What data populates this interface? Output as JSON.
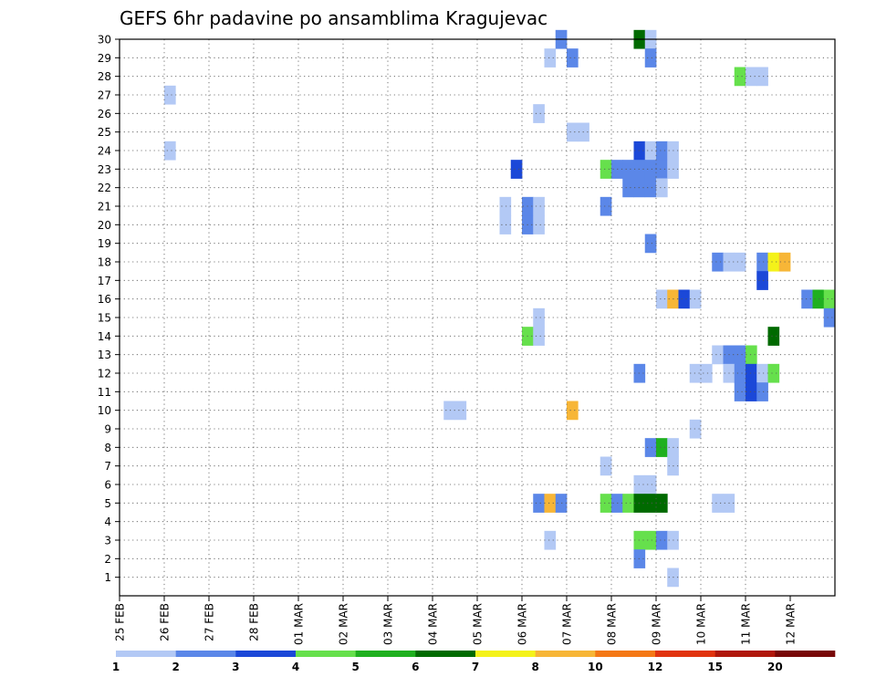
{
  "chart_data": {
    "type": "heatmap",
    "title": "GEFS 6hr padavine po ansamblima Kragujevac",
    "x_tick_labels": [
      "25 FEB",
      "26 FEB",
      "27 FEB",
      "28 FEB",
      "01 MAR",
      "02 MAR",
      "03 MAR",
      "04 MAR",
      "05 MAR",
      "06 MAR",
      "07 MAR",
      "08 MAR",
      "09 MAR",
      "10 MAR",
      "11 MAR",
      "12 MAR"
    ],
    "x_range_days": [
      0,
      16
    ],
    "x_step_days": 0.25,
    "y_tick_labels": [
      "1",
      "2",
      "3",
      "4",
      "5",
      "6",
      "7",
      "8",
      "9",
      "10",
      "11",
      "12",
      "13",
      "14",
      "15",
      "16",
      "17",
      "18",
      "19",
      "20",
      "21",
      "22",
      "23",
      "24",
      "25",
      "26",
      "27",
      "28",
      "29",
      "30"
    ],
    "y_range": [
      0,
      30
    ],
    "grid": true,
    "colorbar": {
      "colors": [
        "#b3c9f5",
        "#5b87e8",
        "#1b48d8",
        "#66e04c",
        "#1fb01f",
        "#006a00",
        "#f4f21a",
        "#f7b637",
        "#f47816",
        "#e1340f",
        "#b0180c",
        "#780808"
      ],
      "labels": [
        "1",
        "2",
        "3",
        "4",
        "5",
        "6",
        "7",
        "8",
        "10",
        "12",
        "15",
        "20"
      ]
    },
    "cells": [
      {
        "m": 30,
        "t": 9.75,
        "v": 2
      },
      {
        "m": 30,
        "t": 11.5,
        "v": 6
      },
      {
        "m": 30,
        "t": 11.75,
        "v": 1
      },
      {
        "m": 29,
        "t": 9.5,
        "v": 1
      },
      {
        "m": 29,
        "t": 10,
        "v": 2
      },
      {
        "m": 29,
        "t": 11.75,
        "v": 2
      },
      {
        "m": 28,
        "t": 13.75,
        "v": 4
      },
      {
        "m": 28,
        "t": 14,
        "v": 1
      },
      {
        "m": 28,
        "t": 14.25,
        "v": 1
      },
      {
        "m": 27,
        "t": 1,
        "v": 1
      },
      {
        "m": 26,
        "t": 9.25,
        "v": 1
      },
      {
        "m": 25,
        "t": 10,
        "v": 1
      },
      {
        "m": 25,
        "t": 10.25,
        "v": 1
      },
      {
        "m": 24,
        "t": 1,
        "v": 1
      },
      {
        "m": 24,
        "t": 11.5,
        "v": 3
      },
      {
        "m": 24,
        "t": 11.75,
        "v": 1
      },
      {
        "m": 24,
        "t": 12,
        "v": 2
      },
      {
        "m": 24,
        "t": 12.25,
        "v": 1
      },
      {
        "m": 23,
        "t": 8.75,
        "v": 3
      },
      {
        "m": 23,
        "t": 10.75,
        "v": 4
      },
      {
        "m": 23,
        "t": 11,
        "v": 2
      },
      {
        "m": 23,
        "t": 11.25,
        "v": 2
      },
      {
        "m": 23,
        "t": 11.5,
        "v": 2
      },
      {
        "m": 23,
        "t": 11.75,
        "v": 2
      },
      {
        "m": 23,
        "t": 12,
        "v": 2
      },
      {
        "m": 23,
        "t": 12.25,
        "v": 1
      },
      {
        "m": 22,
        "t": 11.25,
        "v": 2
      },
      {
        "m": 22,
        "t": 11.5,
        "v": 2
      },
      {
        "m": 22,
        "t": 11.75,
        "v": 2
      },
      {
        "m": 22,
        "t": 12,
        "v": 1
      },
      {
        "m": 21,
        "t": 10.75,
        "v": 2
      },
      {
        "m": 21,
        "t": 8.5,
        "v": 1
      },
      {
        "m": 21,
        "t": 9,
        "v": 2
      },
      {
        "m": 21,
        "t": 9.25,
        "v": 1
      },
      {
        "m": 20,
        "t": 8.5,
        "v": 1
      },
      {
        "m": 20,
        "t": 9,
        "v": 2
      },
      {
        "m": 20,
        "t": 9.25,
        "v": 1
      },
      {
        "m": 19,
        "t": 11.75,
        "v": 2
      },
      {
        "m": 18,
        "t": 13.25,
        "v": 2
      },
      {
        "m": 18,
        "t": 13.5,
        "v": 1
      },
      {
        "m": 18,
        "t": 13.75,
        "v": 1
      },
      {
        "m": 18,
        "t": 14.25,
        "v": 2
      },
      {
        "m": 18,
        "t": 14.5,
        "v": 7
      },
      {
        "m": 18,
        "t": 14.75,
        "v": 8
      },
      {
        "m": 17,
        "t": 14.25,
        "v": 3
      },
      {
        "m": 16,
        "t": 12,
        "v": 1
      },
      {
        "m": 16,
        "t": 12.25,
        "v": 8
      },
      {
        "m": 16,
        "t": 12.5,
        "v": 3
      },
      {
        "m": 16,
        "t": 12.75,
        "v": 1
      },
      {
        "m": 16,
        "t": 15.25,
        "v": 2
      },
      {
        "m": 16,
        "t": 15.5,
        "v": 5
      },
      {
        "m": 16,
        "t": 15.75,
        "v": 4
      },
      {
        "m": 15,
        "t": 9.25,
        "v": 1
      },
      {
        "m": 15,
        "t": 15.75,
        "v": 2
      },
      {
        "m": 14,
        "t": 9,
        "v": 4
      },
      {
        "m": 14,
        "t": 9.25,
        "v": 1
      },
      {
        "m": 14,
        "t": 14.5,
        "v": 6
      },
      {
        "m": 13,
        "t": 13.25,
        "v": 1
      },
      {
        "m": 13,
        "t": 13.5,
        "v": 2
      },
      {
        "m": 13,
        "t": 13.75,
        "v": 2
      },
      {
        "m": 13,
        "t": 14,
        "v": 4
      },
      {
        "m": 12,
        "t": 11.5,
        "v": 2
      },
      {
        "m": 12,
        "t": 12.75,
        "v": 1
      },
      {
        "m": 12,
        "t": 13,
        "v": 1
      },
      {
        "m": 12,
        "t": 13.5,
        "v": 1
      },
      {
        "m": 12,
        "t": 13.75,
        "v": 2
      },
      {
        "m": 12,
        "t": 14,
        "v": 3
      },
      {
        "m": 12,
        "t": 14.25,
        "v": 1
      },
      {
        "m": 12,
        "t": 14.5,
        "v": 4
      },
      {
        "m": 11,
        "t": 13.75,
        "v": 2
      },
      {
        "m": 11,
        "t": 14,
        "v": 3
      },
      {
        "m": 11,
        "t": 14.25,
        "v": 2
      },
      {
        "m": 10,
        "t": 7.25,
        "v": 1
      },
      {
        "m": 10,
        "t": 7.5,
        "v": 1
      },
      {
        "m": 10,
        "t": 10,
        "v": 8
      },
      {
        "m": 9,
        "t": 12.75,
        "v": 1
      },
      {
        "m": 8,
        "t": 11.75,
        "v": 2
      },
      {
        "m": 8,
        "t": 12,
        "v": 5
      },
      {
        "m": 8,
        "t": 12.25,
        "v": 1
      },
      {
        "m": 7,
        "t": 10.75,
        "v": 1
      },
      {
        "m": 7,
        "t": 12.25,
        "v": 1
      },
      {
        "m": 6,
        "t": 11.5,
        "v": 1
      },
      {
        "m": 6,
        "t": 11.75,
        "v": 1
      },
      {
        "m": 5,
        "t": 9.25,
        "v": 2
      },
      {
        "m": 5,
        "t": 9.5,
        "v": 8
      },
      {
        "m": 5,
        "t": 9.75,
        "v": 2
      },
      {
        "m": 5,
        "t": 10.75,
        "v": 4
      },
      {
        "m": 5,
        "t": 11,
        "v": 2
      },
      {
        "m": 5,
        "t": 11.25,
        "v": 4
      },
      {
        "m": 5,
        "t": 11.5,
        "v": 6
      },
      {
        "m": 5,
        "t": 11.75,
        "v": 6
      },
      {
        "m": 5,
        "t": 12,
        "v": 6
      },
      {
        "m": 5,
        "t": 13.25,
        "v": 1
      },
      {
        "m": 5,
        "t": 13.5,
        "v": 1
      },
      {
        "m": 3,
        "t": 9.5,
        "v": 1
      },
      {
        "m": 3,
        "t": 11.5,
        "v": 4
      },
      {
        "m": 3,
        "t": 11.75,
        "v": 4
      },
      {
        "m": 3,
        "t": 12,
        "v": 2
      },
      {
        "m": 3,
        "t": 12.25,
        "v": 1
      },
      {
        "m": 2,
        "t": 11.5,
        "v": 2
      },
      {
        "m": 1,
        "t": 12.25,
        "v": 1
      }
    ]
  }
}
